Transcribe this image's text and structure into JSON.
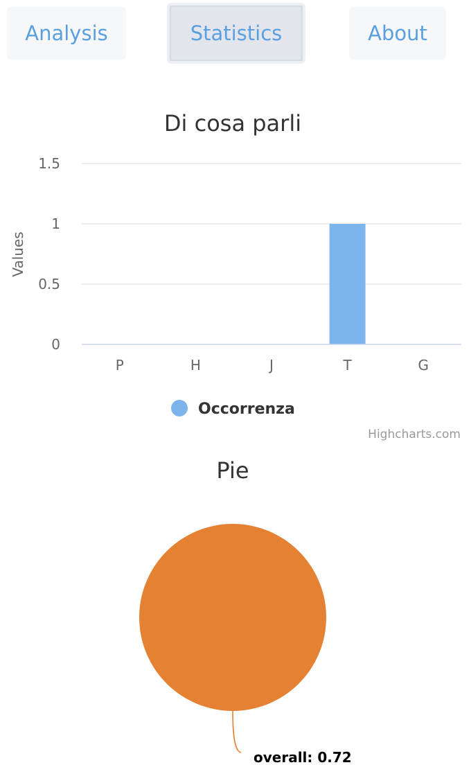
{
  "tabs": [
    {
      "label": "Analysis",
      "active": false
    },
    {
      "label": "Statistics",
      "active": true
    },
    {
      "label": "About",
      "active": false
    }
  ],
  "bar_chart": {
    "credits": "Highcharts.com"
  },
  "pie_chart": {
    "credits": ""
  },
  "chart_data": [
    {
      "type": "bar",
      "title": "Di cosa parli",
      "xlabel": "",
      "ylabel": "Values",
      "categories": [
        "P",
        "H",
        "J",
        "T",
        "G"
      ],
      "series": [
        {
          "name": "Occorrenza",
          "values": [
            0,
            0,
            0,
            1,
            0
          ],
          "color": "#7cb5ec"
        }
      ],
      "ylim": [
        0,
        1.5
      ],
      "yticks": [
        "0",
        "0.5",
        "1",
        "1.5"
      ],
      "yticks_values": [
        0,
        0.5,
        1,
        1.5
      ],
      "grid": true,
      "legend": "bottom-center"
    },
    {
      "type": "pie",
      "title": "Pie",
      "slices": [
        {
          "label": "overall",
          "value": 0.72,
          "data_label": "overall: 0.72",
          "color": "#e48132"
        }
      ]
    }
  ]
}
